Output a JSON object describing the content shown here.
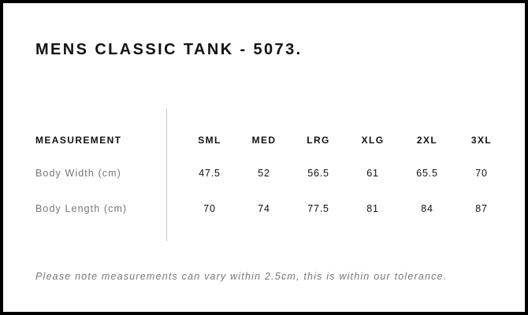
{
  "title": "MENS CLASSIC TANK - 5073.",
  "table": {
    "header_label": "MEASUREMENT",
    "sizes": [
      "SML",
      "MED",
      "LRG",
      "XLG",
      "2XL",
      "3XL"
    ],
    "rows": [
      {
        "label": "Body Width (cm)",
        "values": [
          "47.5",
          "52",
          "56.5",
          "61",
          "65.5",
          "70"
        ]
      },
      {
        "label": "Body Length (cm)",
        "values": [
          "70",
          "74",
          "77.5",
          "81",
          "84",
          "87"
        ]
      }
    ]
  },
  "note": "Please note measurements can vary within 2.5cm, this is within our tolerance.",
  "colors": {
    "border": "#000000",
    "background": "#ffffff",
    "text": "#111111",
    "muted_text": "#777777",
    "divider": "#c8c8c8"
  }
}
